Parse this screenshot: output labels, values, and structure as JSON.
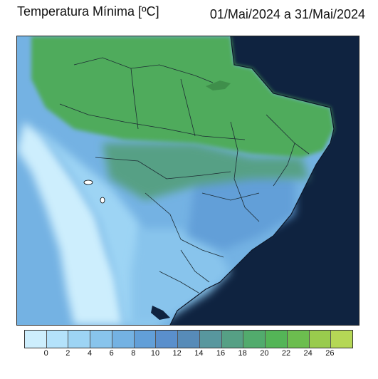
{
  "header": {
    "title": "Temperatura Mínima [ºC]",
    "period": "01/Mai/2024 a 31/Mai/2024"
  },
  "legend": {
    "ticks": [
      "0",
      "2",
      "4",
      "6",
      "8",
      "10",
      "12",
      "14",
      "16",
      "18",
      "20",
      "22",
      "24",
      "26"
    ],
    "colors": [
      "#cdeefd",
      "#b4e2fb",
      "#9dd4f4",
      "#88c4ec",
      "#74b2e3",
      "#629fd8",
      "#5a8fcc",
      "#578bb8",
      "#58979e",
      "#56a085",
      "#52ab6d",
      "#54b557",
      "#6cbd4f",
      "#99cb4d",
      "#b5d756"
    ]
  },
  "map": {
    "ocean_color": "#0f2340",
    "land_colors": {
      "north": "#50ab5b",
      "central": "#56a085",
      "southeast": "#629fd8",
      "south": "#88c4ec",
      "andes": "#cdeefd"
    }
  }
}
